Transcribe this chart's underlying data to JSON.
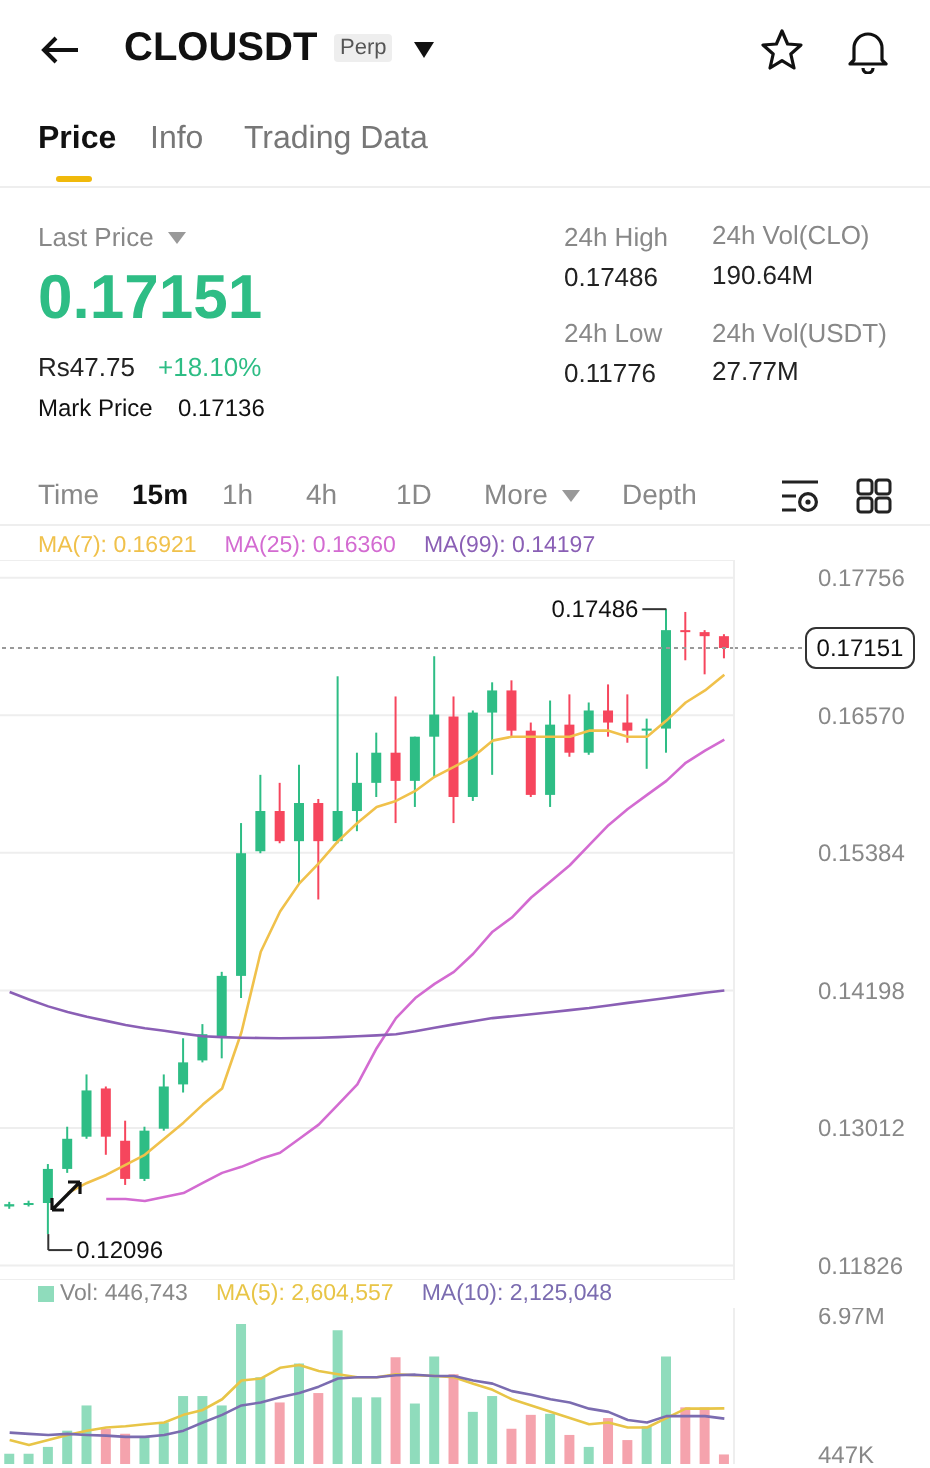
{
  "chart_data": [
    {
      "type": "other",
      "title": "CLOUSDT",
      "annotations": [
        "Perp",
        "Price",
        "Info",
        "Trading Data",
        "Last Price",
        "0.17151",
        "Rs47.75",
        "+18.10%",
        "Mark Price",
        "0.17136",
        "24h High",
        "0.17486",
        "24h Low",
        "0.11776",
        "24h Vol(CLO)",
        "190.64M",
        "24h Vol(USDT)",
        "27.77M",
        "Time",
        "15m",
        "1h",
        "4h",
        "1D",
        "More",
        "Depth"
      ]
    },
    {
      "type": "candlestick",
      "categories": [
        null,
        null,
        null,
        null,
        null,
        null,
        null,
        null,
        null,
        null,
        null,
        null,
        null,
        null,
        null,
        null,
        null,
        null,
        null,
        null,
        null,
        null,
        null,
        null,
        null,
        null,
        null,
        null,
        null,
        null,
        null,
        null,
        null,
        null,
        null,
        null,
        null,
        null
      ],
      "ohlc": [
        [
          0.12334,
          0.12374,
          0.12314,
          0.12354
        ],
        [
          0.12354,
          0.12384,
          0.12334,
          0.12364
        ],
        [
          0.12364,
          0.127,
          0.12096,
          0.12658
        ],
        [
          0.12658,
          0.13022,
          0.12624,
          0.12918
        ],
        [
          0.12936,
          0.13473,
          0.12918,
          0.13335
        ],
        [
          0.13352,
          0.13369,
          0.1278,
          0.12936
        ],
        [
          0.12901,
          0.13074,
          0.1252,
          0.12572
        ],
        [
          0.12572,
          0.13022,
          0.12554,
          0.12988
        ],
        [
          0.13005,
          0.13473,
          0.12988,
          0.13369
        ],
        [
          0.13387,
          0.13785,
          0.13317,
          0.13577
        ],
        [
          0.13594,
          0.13907,
          0.13577,
          0.1382
        ],
        [
          0.13803,
          0.14358,
          0.13612,
          0.14323
        ],
        [
          0.14323,
          0.15641,
          0.14132,
          0.15381
        ],
        [
          0.15398,
          0.16057,
          0.15381,
          0.15745
        ],
        [
          0.15745,
          0.15988,
          0.15467,
          0.15485
        ],
        [
          0.15485,
          0.16144,
          0.15121,
          0.15814
        ],
        [
          0.15814,
          0.15849,
          0.14982,
          0.15485
        ],
        [
          0.15485,
          0.16907,
          0.15467,
          0.15745
        ],
        [
          0.15745,
          0.16248,
          0.15571,
          0.15988
        ],
        [
          0.15988,
          0.16421,
          0.15866,
          0.16248
        ],
        [
          0.16248,
          0.16733,
          0.15641,
          0.16005
        ],
        [
          0.16005,
          0.16386,
          0.1578,
          0.16386
        ],
        [
          0.16386,
          0.1708,
          0.1604,
          0.16577
        ],
        [
          0.1656,
          0.16733,
          0.15641,
          0.15866
        ],
        [
          0.15866,
          0.16612,
          0.15832,
          0.16594
        ],
        [
          0.16594,
          0.16855,
          0.16057,
          0.16785
        ],
        [
          0.16785,
          0.16872,
          0.16386,
          0.16438
        ],
        [
          0.16438,
          0.16508,
          0.15866,
          0.15884
        ],
        [
          0.15884,
          0.16698,
          0.1578,
          0.1649
        ],
        [
          0.1649,
          0.16751,
          0.16213,
          0.16248
        ],
        [
          0.16248,
          0.16681,
          0.1623,
          0.16612
        ],
        [
          0.16612,
          0.16837,
          0.16386,
          0.16508
        ],
        [
          0.16508,
          0.16751,
          0.16334,
          0.16438
        ],
        [
          0.16438,
          0.16542,
          0.16109,
          0.16456
        ],
        [
          0.16456,
          0.17486,
          0.16248,
          0.17305
        ],
        [
          0.17305,
          0.17462,
          0.17045,
          0.17288
        ],
        [
          0.17288,
          0.17305,
          0.16924,
          0.17253
        ],
        [
          0.17253,
          0.1727,
          0.17062,
          0.17151
        ]
      ],
      "series": [
        {
          "type": "line",
          "name": "MA(7): 0.16921",
          "color": "#f0c14b",
          "values": [
            null,
            null,
            null,
            0.1245,
            0.12537,
            0.12606,
            0.12693,
            0.1278,
            0.12918,
            0.13057,
            0.13213,
            0.13352,
            0.13837,
            0.14531,
            0.14878,
            0.15121,
            0.15294,
            0.15485,
            0.15641,
            0.1578,
            0.15832,
            0.15918,
            0.1604,
            0.16126,
            0.16213,
            0.16352,
            0.16386,
            0.16386,
            0.16386,
            0.16386,
            0.16438,
            0.16438,
            0.16386,
            0.16386,
            0.16525,
            0.16681,
            0.16785,
            0.16921
          ]
        },
        {
          "type": "line",
          "name": "MA(25): 0.16360",
          "color": "#d36bd1",
          "values": [
            null,
            null,
            null,
            null,
            null,
            0.12398,
            0.12398,
            0.12381,
            0.12416,
            0.1245,
            0.12537,
            0.12624,
            0.12676,
            0.12745,
            0.12797,
            0.12918,
            0.1304,
            0.13213,
            0.13387,
            0.13699,
            0.13959,
            0.14132,
            0.14254,
            0.14358,
            0.14514,
            0.14704,
            0.14826,
            0.14999,
            0.15138,
            0.15277,
            0.1545,
            0.15623,
            0.15762,
            0.15884,
            0.16005,
            0.16161,
            0.16265,
            0.1636
          ]
        },
        {
          "type": "line",
          "name": "MA(99): 0.14197",
          "color": "#8a5fb5",
          "values": [
            0.14184,
            0.1412,
            0.1406,
            0.14011,
            0.1397,
            0.13935,
            0.139,
            0.13872,
            0.1385,
            0.13825,
            0.13803,
            0.13795,
            0.1379,
            0.13787,
            0.13785,
            0.13787,
            0.1379,
            0.13795,
            0.13803,
            0.1381,
            0.1382,
            0.13845,
            0.13875,
            0.13905,
            0.13932,
            0.13959,
            0.13975,
            0.13992,
            0.1401,
            0.14028,
            0.14046,
            0.14068,
            0.1409,
            0.14111,
            0.14132,
            0.14155,
            0.14178,
            0.14197
          ]
        }
      ],
      "ylim": [
        0.117,
        0.1791
      ],
      "yticks": [
        0.11826,
        0.13012,
        0.14198,
        0.15384,
        {
          "value": 0.1657,
          "label": "0.16570"
        },
        0.17756
      ],
      "grid": "y",
      "legend": "top",
      "tick_labels": "y",
      "ref_lines": [
        {
          "axis": "y",
          "value": 0.17151,
          "label": "0.17151",
          "line_style": "dotted",
          "color": "#999999"
        }
      ],
      "annotations": [
        "0.17486",
        "0.12096"
      ]
    },
    {
      "type": "bar",
      "categories": [
        null,
        null,
        null,
        null,
        null,
        null,
        null,
        null,
        null,
        null,
        null,
        null,
        null,
        null,
        null,
        null,
        null,
        null,
        null,
        null,
        null,
        null,
        null,
        null,
        null,
        null,
        null,
        null,
        null,
        null,
        null,
        null,
        null,
        null,
        null,
        null,
        null,
        null
      ],
      "series": [
        {
          "type": "bar",
          "name": "Vol: 446,743",
          "values": [
            480000,
            480000,
            800000,
            1560000,
            2740000,
            1650000,
            1420000,
            1270000,
            1950000,
            3180000,
            3180000,
            2740000,
            6550000,
            4060000,
            2880000,
            4700000,
            3320000,
            6260000,
            3120000,
            3120000,
            5000000,
            2830000,
            5030000,
            4200000,
            2440000,
            3180000,
            1650000,
            2300000,
            2350000,
            1360000,
            800000,
            2150000,
            1120000,
            1770000,
            5030000,
            2650000,
            2650000,
            446743
          ],
          "colors": [
            "#8fdcbc",
            "#8fdcbc",
            "#8fdcbc",
            "#8fdcbc",
            "#8fdcbc",
            "#f5a3ad",
            "#f5a3ad",
            "#8fdcbc",
            "#8fdcbc",
            "#8fdcbc",
            "#8fdcbc",
            "#8fdcbc",
            "#8fdcbc",
            "#8fdcbc",
            "#f5a3ad",
            "#8fdcbc",
            "#f5a3ad",
            "#8fdcbc",
            "#8fdcbc",
            "#8fdcbc",
            "#f5a3ad",
            "#8fdcbc",
            "#8fdcbc",
            "#f5a3ad",
            "#8fdcbc",
            "#8fdcbc",
            "#f5a3ad",
            "#f5a3ad",
            "#8fdcbc",
            "#f5a3ad",
            "#8fdcbc",
            "#f5a3ad",
            "#f5a3ad",
            "#8fdcbc",
            "#8fdcbc",
            "#f5a3ad",
            "#f5a3ad",
            "#f5a3ad"
          ]
        },
        {
          "type": "line",
          "name": "MA(5): 2,604,557",
          "color": "#e8c547",
          "values": [
            1120000,
            890000,
            1120000,
            1360000,
            1560000,
            1710000,
            1770000,
            1860000,
            1940000,
            2300000,
            2530000,
            3030000,
            3910000,
            4000000,
            4500000,
            4630000,
            4350000,
            4200000,
            4060000,
            4060000,
            4200000,
            4150000,
            4120000,
            4060000,
            3760000,
            3470000,
            3030000,
            2740000,
            2440000,
            2150000,
            1860000,
            1940000,
            1710000,
            1710000,
            2150000,
            2590000,
            2590000,
            2604557
          ]
        },
        {
          "type": "line",
          "name": "MA(10): 2,125,048",
          "color": "#7b6cb0",
          "values": [
            1470000,
            1410000,
            1360000,
            1410000,
            1360000,
            1330000,
            1270000,
            1270000,
            1360000,
            1560000,
            1940000,
            2300000,
            2740000,
            2880000,
            3120000,
            3320000,
            3620000,
            4000000,
            4060000,
            4060000,
            4150000,
            4180000,
            4120000,
            4120000,
            3910000,
            3760000,
            3410000,
            3240000,
            3030000,
            2880000,
            2590000,
            2440000,
            2060000,
            1940000,
            2240000,
            2240000,
            2240000,
            2125048
          ]
        }
      ],
      "ylim": [
        0,
        7300000
      ],
      "yticks": [
        {
          "value": 447000,
          "label": "447K"
        },
        {
          "value": 6970000,
          "label": "6.97M"
        }
      ],
      "legend": "top",
      "tick_labels": "y"
    }
  ]
}
